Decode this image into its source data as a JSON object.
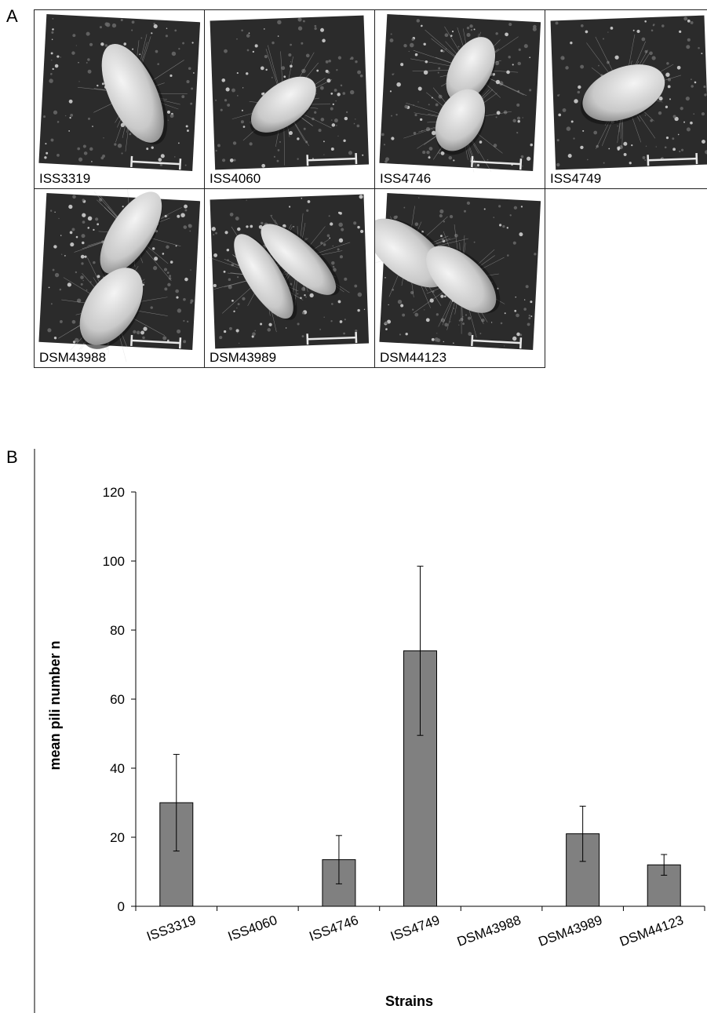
{
  "panel_a": {
    "letter": "A",
    "tiles": [
      {
        "label": "ISS3319"
      },
      {
        "label": "ISS4060"
      },
      {
        "label": "ISS4746"
      },
      {
        "label": "ISS4749"
      },
      {
        "label": "DSM43988"
      },
      {
        "label": "DSM43989"
      },
      {
        "label": "DSM44123"
      }
    ]
  },
  "panel_b": {
    "letter": "B"
  },
  "chart_data": {
    "type": "bar",
    "categories": [
      "ISS3319",
      "ISS4060",
      "ISS4746",
      "ISS4749",
      "DSM43988",
      "DSM43989",
      "DSM44123"
    ],
    "values": [
      30,
      0,
      13.5,
      74,
      0,
      21,
      12
    ],
    "errors": [
      14,
      0,
      7,
      24.5,
      0,
      8,
      3
    ],
    "xlabel": "Strains",
    "ylabel": "mean pili number n",
    "ylim": [
      0,
      120
    ],
    "yticks": [
      0,
      20,
      40,
      60,
      80,
      100,
      120
    ],
    "grid": false,
    "bar_color": "#808080",
    "legend": "none"
  }
}
